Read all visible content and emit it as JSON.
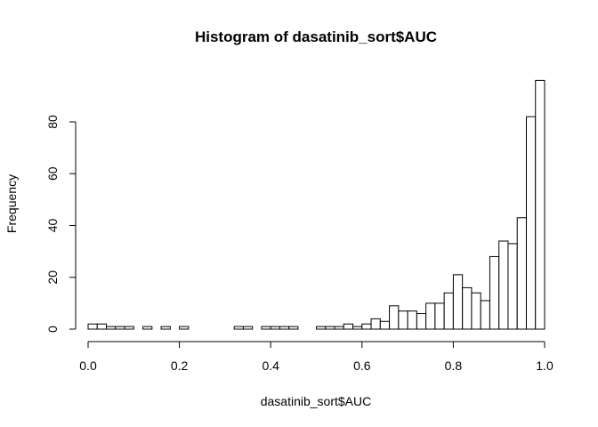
{
  "chart_data": {
    "type": "bar",
    "title": "Histogram of dasatinib_sort$AUC",
    "xlabel": "dasatinib_sort$AUC",
    "ylabel": "Frequency",
    "xlim": [
      0,
      1
    ],
    "ylim": [
      0,
      100
    ],
    "x_ticks": [
      "0.0",
      "0.2",
      "0.4",
      "0.6",
      "0.8",
      "1.0"
    ],
    "y_ticks": [
      "0",
      "20",
      "40",
      "60",
      "80"
    ],
    "bin_width": 0.02,
    "bin_starts": [
      0.0,
      0.02,
      0.04,
      0.06,
      0.08,
      0.1,
      0.12,
      0.14,
      0.16,
      0.18,
      0.2,
      0.22,
      0.24,
      0.26,
      0.28,
      0.3,
      0.32,
      0.34,
      0.36,
      0.38,
      0.4,
      0.42,
      0.44,
      0.46,
      0.48,
      0.5,
      0.52,
      0.54,
      0.56,
      0.58,
      0.6,
      0.62,
      0.64,
      0.66,
      0.68,
      0.7,
      0.72,
      0.74,
      0.76,
      0.78,
      0.8,
      0.82,
      0.84,
      0.86,
      0.88,
      0.9,
      0.92,
      0.94,
      0.96,
      0.98
    ],
    "values": [
      2,
      2,
      1,
      1,
      1,
      0,
      1,
      0,
      1,
      0,
      1,
      0,
      0,
      0,
      0,
      0,
      1,
      1,
      0,
      1,
      1,
      1,
      1,
      0,
      0,
      1,
      1,
      1,
      2,
      1,
      2,
      4,
      3,
      9,
      7,
      7,
      6,
      10,
      10,
      14,
      21,
      16,
      14,
      11,
      28,
      34,
      33,
      43,
      82,
      96
    ],
    "grid": false,
    "bar_fill": "#ffffff",
    "bar_stroke": "#000000"
  }
}
